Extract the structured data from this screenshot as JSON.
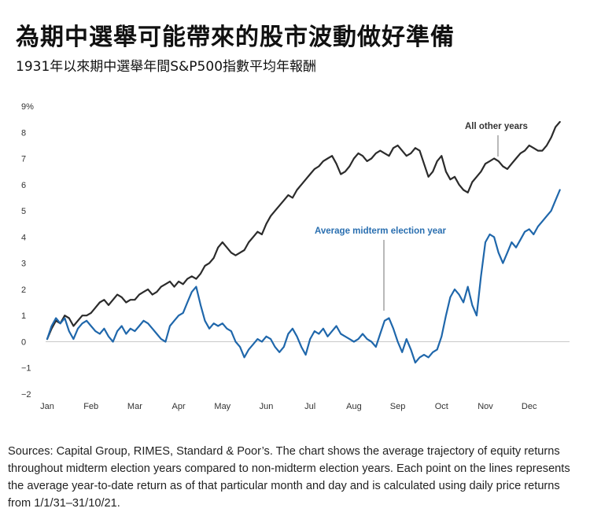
{
  "title": "為期中選舉可能帶來的股市波動做好準備",
  "subtitle": "1931年以來期中選舉年間S&P500指數平均年報酬",
  "source": "Sources: Capital Group, RIMES, Standard & Poor’s. The chart shows the average trajectory of equity returns throughout midterm election years compared to non-midterm election years. Each point on the lines represents the average year-to-date return as of that particular month and day and is calculated using daily price returns from 1/1/31–31/10/21.",
  "colors": {
    "other": "#2b2b2b",
    "midterm": "#1f67ab",
    "zero_line": "#c9c9c9",
    "callout_line": "#8a8a8a"
  },
  "chart_data": {
    "type": "line",
    "title": "",
    "xlabel": "",
    "ylabel": "",
    "ylim": [
      -2,
      9
    ],
    "y_ticks": [
      "9%",
      "8",
      "7",
      "6",
      "5",
      "4",
      "3",
      "2",
      "1",
      "0",
      "−1",
      "−2"
    ],
    "y_tick_values": [
      9,
      8,
      7,
      6,
      5,
      4,
      3,
      2,
      1,
      0,
      -1,
      -2
    ],
    "x_ticks": [
      "Jan",
      "Feb",
      "Mar",
      "Apr",
      "May",
      "Jun",
      "Jul",
      "Aug",
      "Sep",
      "Oct",
      "Nov",
      "Dec"
    ],
    "x_unit": "month (Jan = 0)",
    "grid": false,
    "annotations": [
      {
        "series": "All other years",
        "text": "All other years"
      },
      {
        "series": "Average midterm election year",
        "text": "Average midterm election year"
      }
    ],
    "series": [
      {
        "name": "All other years",
        "x": [
          0,
          0.1,
          0.2,
          0.3,
          0.4,
          0.5,
          0.6,
          0.7,
          0.8,
          0.9,
          1.0,
          1.1,
          1.2,
          1.3,
          1.4,
          1.5,
          1.6,
          1.7,
          1.8,
          1.9,
          2.0,
          2.1,
          2.2,
          2.3,
          2.4,
          2.5,
          2.6,
          2.7,
          2.8,
          2.9,
          3.0,
          3.1,
          3.2,
          3.3,
          3.4,
          3.5,
          3.6,
          3.7,
          3.8,
          3.9,
          4.0,
          4.1,
          4.2,
          4.3,
          4.4,
          4.5,
          4.6,
          4.7,
          4.8,
          4.9,
          5.0,
          5.1,
          5.2,
          5.3,
          5.4,
          5.5,
          5.6,
          5.7,
          5.8,
          5.9,
          6.0,
          6.1,
          6.2,
          6.3,
          6.4,
          6.5,
          6.6,
          6.7,
          6.8,
          6.9,
          7.0,
          7.1,
          7.2,
          7.3,
          7.4,
          7.5,
          7.6,
          7.7,
          7.8,
          7.9,
          8.0,
          8.1,
          8.2,
          8.3,
          8.4,
          8.5,
          8.6,
          8.7,
          8.8,
          8.9,
          9.0,
          9.1,
          9.2,
          9.3,
          9.4,
          9.5,
          9.6,
          9.7,
          9.8,
          9.9,
          10.0,
          10.1,
          10.2,
          10.3,
          10.4,
          10.5,
          10.6,
          10.7,
          10.8,
          10.9,
          11.0,
          11.1,
          11.2,
          11.3,
          11.4,
          11.5,
          11.6,
          11.7
        ],
        "values": [
          0.1,
          0.5,
          0.8,
          0.7,
          1.0,
          0.9,
          0.6,
          0.8,
          1.0,
          1.0,
          1.1,
          1.3,
          1.5,
          1.6,
          1.4,
          1.6,
          1.8,
          1.7,
          1.5,
          1.6,
          1.6,
          1.8,
          1.9,
          2.0,
          1.8,
          1.9,
          2.1,
          2.2,
          2.3,
          2.1,
          2.3,
          2.2,
          2.4,
          2.5,
          2.4,
          2.6,
          2.9,
          3.0,
          3.2,
          3.6,
          3.8,
          3.6,
          3.4,
          3.3,
          3.4,
          3.5,
          3.8,
          4.0,
          4.2,
          4.1,
          4.5,
          4.8,
          5.0,
          5.2,
          5.4,
          5.6,
          5.5,
          5.8,
          6.0,
          6.2,
          6.4,
          6.6,
          6.7,
          6.9,
          7.0,
          7.1,
          6.8,
          6.4,
          6.5,
          6.7,
          7.0,
          7.2,
          7.1,
          6.9,
          7.0,
          7.2,
          7.3,
          7.2,
          7.1,
          7.4,
          7.5,
          7.3,
          7.1,
          7.2,
          7.4,
          7.3,
          6.8,
          6.3,
          6.5,
          6.9,
          7.1,
          6.5,
          6.2,
          6.3,
          6.0,
          5.8,
          5.7,
          6.1,
          6.3,
          6.5,
          6.8,
          6.9,
          7.0,
          6.9,
          6.7,
          6.6,
          6.8,
          7.0,
          7.2,
          7.3,
          7.5,
          7.4,
          7.3,
          7.3,
          7.5,
          7.8,
          8.2,
          8.4
        ]
      },
      {
        "name": "Average midterm election year",
        "x": [
          0,
          0.1,
          0.2,
          0.3,
          0.4,
          0.5,
          0.6,
          0.7,
          0.8,
          0.9,
          1.0,
          1.1,
          1.2,
          1.3,
          1.4,
          1.5,
          1.6,
          1.7,
          1.8,
          1.9,
          2.0,
          2.1,
          2.2,
          2.3,
          2.4,
          2.5,
          2.6,
          2.7,
          2.8,
          2.9,
          3.0,
          3.1,
          3.2,
          3.3,
          3.4,
          3.5,
          3.6,
          3.7,
          3.8,
          3.9,
          4.0,
          4.1,
          4.2,
          4.3,
          4.4,
          4.5,
          4.6,
          4.7,
          4.8,
          4.9,
          5.0,
          5.1,
          5.2,
          5.3,
          5.4,
          5.5,
          5.6,
          5.7,
          5.8,
          5.9,
          6.0,
          6.1,
          6.2,
          6.3,
          6.4,
          6.5,
          6.6,
          6.7,
          6.8,
          6.9,
          7.0,
          7.1,
          7.2,
          7.3,
          7.4,
          7.5,
          7.6,
          7.7,
          7.8,
          7.9,
          8.0,
          8.1,
          8.2,
          8.3,
          8.4,
          8.5,
          8.6,
          8.7,
          8.8,
          8.9,
          9.0,
          9.1,
          9.2,
          9.3,
          9.4,
          9.5,
          9.6,
          9.7,
          9.8,
          9.9,
          10.0,
          10.1,
          10.2,
          10.3,
          10.4,
          10.5,
          10.6,
          10.7,
          10.8,
          10.9,
          11.0,
          11.1,
          11.2,
          11.3,
          11.4,
          11.5,
          11.6,
          11.7
        ],
        "values": [
          0.1,
          0.6,
          0.9,
          0.7,
          0.9,
          0.4,
          0.1,
          0.5,
          0.7,
          0.8,
          0.6,
          0.4,
          0.3,
          0.5,
          0.2,
          0.0,
          0.4,
          0.6,
          0.3,
          0.5,
          0.4,
          0.6,
          0.8,
          0.7,
          0.5,
          0.3,
          0.1,
          0.0,
          0.6,
          0.8,
          1.0,
          1.1,
          1.5,
          1.9,
          2.1,
          1.4,
          0.8,
          0.5,
          0.7,
          0.6,
          0.7,
          0.5,
          0.4,
          0.0,
          -0.2,
          -0.6,
          -0.3,
          -0.1,
          0.1,
          0.0,
          0.2,
          0.1,
          -0.2,
          -0.4,
          -0.2,
          0.3,
          0.5,
          0.2,
          -0.2,
          -0.5,
          0.1,
          0.4,
          0.3,
          0.5,
          0.2,
          0.4,
          0.6,
          0.3,
          0.2,
          0.1,
          0.0,
          0.1,
          0.3,
          0.1,
          0.0,
          -0.2,
          0.3,
          0.8,
          0.9,
          0.5,
          0.0,
          -0.4,
          0.1,
          -0.3,
          -0.8,
          -0.6,
          -0.5,
          -0.6,
          -0.4,
          -0.3,
          0.2,
          1.0,
          1.7,
          2.0,
          1.8,
          1.5,
          2.1,
          1.4,
          1.0,
          2.5,
          3.8,
          4.1,
          4.0,
          3.4,
          3.0,
          3.4,
          3.8,
          3.6,
          3.9,
          4.2,
          4.3,
          4.1,
          4.4,
          4.6,
          4.8,
          5.0,
          5.4,
          5.8
        ]
      }
    ]
  }
}
